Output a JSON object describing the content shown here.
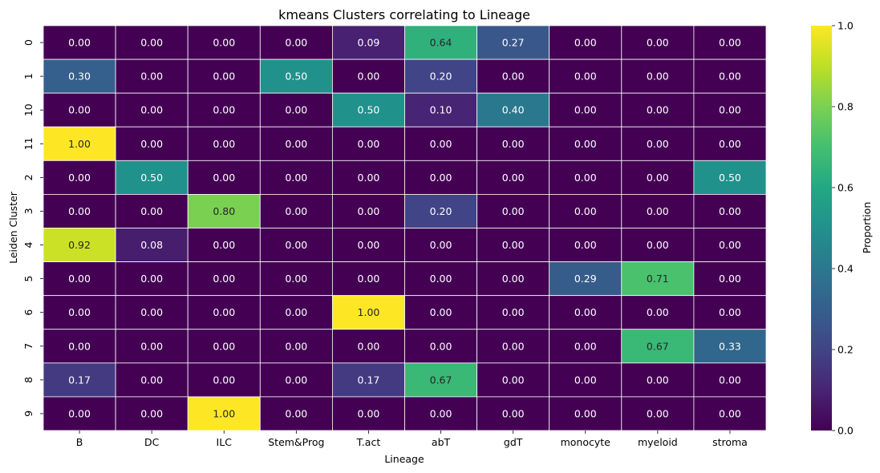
{
  "chart_data": {
    "type": "heatmap",
    "title": "kmeans Clusters correlating to Lineage",
    "xlabel": "Lineage",
    "ylabel": "Leiden Cluster",
    "x_categories": [
      "B",
      "DC",
      "ILC",
      "Stem&Prog",
      "T.act",
      "abT",
      "gdT",
      "monocyte",
      "myeloid",
      "stroma"
    ],
    "y_categories": [
      "0",
      "1",
      "10",
      "11",
      "2",
      "3",
      "4",
      "5",
      "6",
      "7",
      "8",
      "9"
    ],
    "values": [
      [
        0.0,
        0.0,
        0.0,
        0.0,
        0.09,
        0.64,
        0.27,
        0.0,
        0.0,
        0.0
      ],
      [
        0.3,
        0.0,
        0.0,
        0.5,
        0.0,
        0.2,
        0.0,
        0.0,
        0.0,
        0.0
      ],
      [
        0.0,
        0.0,
        0.0,
        0.0,
        0.5,
        0.1,
        0.4,
        0.0,
        0.0,
        0.0
      ],
      [
        1.0,
        0.0,
        0.0,
        0.0,
        0.0,
        0.0,
        0.0,
        0.0,
        0.0,
        0.0
      ],
      [
        0.0,
        0.5,
        0.0,
        0.0,
        0.0,
        0.0,
        0.0,
        0.0,
        0.0,
        0.5
      ],
      [
        0.0,
        0.0,
        0.8,
        0.0,
        0.0,
        0.2,
        0.0,
        0.0,
        0.0,
        0.0
      ],
      [
        0.92,
        0.08,
        0.0,
        0.0,
        0.0,
        0.0,
        0.0,
        0.0,
        0.0,
        0.0
      ],
      [
        0.0,
        0.0,
        0.0,
        0.0,
        0.0,
        0.0,
        0.0,
        0.29,
        0.71,
        0.0
      ],
      [
        0.0,
        0.0,
        0.0,
        0.0,
        1.0,
        0.0,
        0.0,
        0.0,
        0.0,
        0.0
      ],
      [
        0.0,
        0.0,
        0.0,
        0.0,
        0.0,
        0.0,
        0.0,
        0.0,
        0.67,
        0.33
      ],
      [
        0.17,
        0.0,
        0.0,
        0.0,
        0.17,
        0.67,
        0.0,
        0.0,
        0.0,
        0.0
      ],
      [
        0.0,
        0.0,
        1.0,
        0.0,
        0.0,
        0.0,
        0.0,
        0.0,
        0.0,
        0.0
      ]
    ],
    "value_format": "0.00",
    "colormap": "viridis",
    "vlim": [
      0,
      1
    ],
    "colorbar": {
      "label": "Proportion",
      "ticks": [
        "0.0",
        "0.2",
        "0.4",
        "0.6",
        "0.8",
        "1.0"
      ]
    },
    "cell_border_color": "#ffffff",
    "annotation_dark_text_color": "#262626",
    "annotation_light_text_color": "#ffffff"
  }
}
